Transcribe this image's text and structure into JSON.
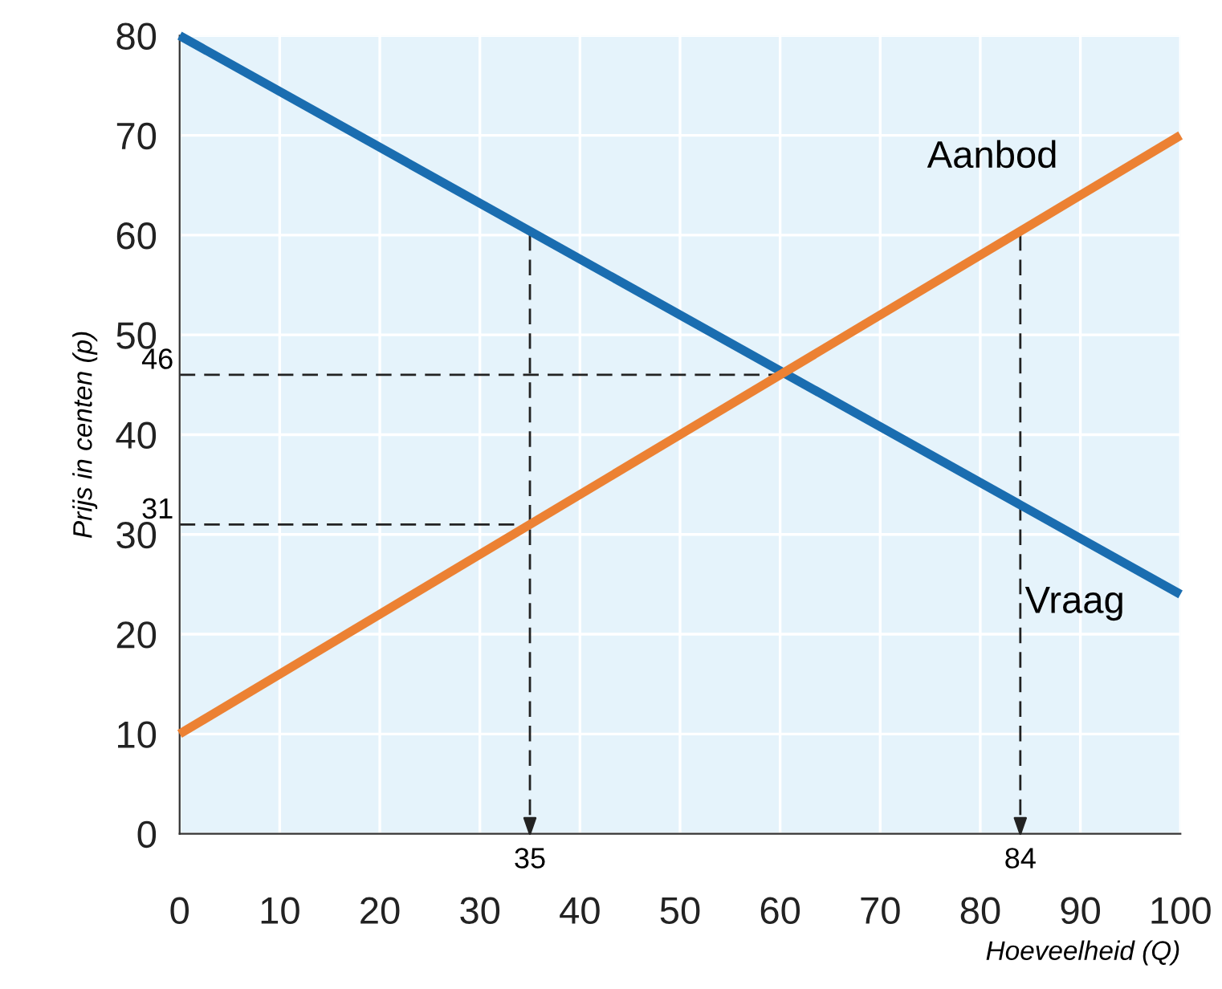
{
  "chart_data": {
    "type": "line",
    "xlabel": "Hoeveelheid (Q)",
    "ylabel": "Prijs in centen (p)",
    "x": [
      0,
      100
    ],
    "series": [
      {
        "name": "Vraag",
        "color": "#1a6db0",
        "values": [
          80,
          24
        ]
      },
      {
        "name": "Aanbod",
        "color": "#ec8133",
        "values": [
          10,
          70
        ]
      },
      {
        "color": "#222222",
        "x": [
          0,
          60
        ],
        "values": [
          46,
          46
        ],
        "line_style": "dashed"
      },
      {
        "color": "#222222",
        "x": [
          0,
          35
        ],
        "values": [
          31,
          31
        ],
        "line_style": "dashed"
      },
      {
        "color": "#222222",
        "x": [
          35,
          35
        ],
        "values": [
          60,
          0
        ],
        "line_style": "dashed"
      },
      {
        "color": "#222222",
        "x": [
          84,
          84
        ],
        "values": [
          60,
          0
        ],
        "line_style": "dashed"
      }
    ],
    "xlim": [
      0,
      100
    ],
    "ylim": [
      0,
      80
    ],
    "xticks": [
      0,
      10,
      20,
      30,
      40,
      50,
      60,
      70,
      80,
      90,
      100
    ],
    "yticks": [
      0,
      10,
      20,
      30,
      40,
      50,
      60,
      70,
      80
    ],
    "grid": true,
    "marker": "none",
    "line_style": "solid",
    "annotations": [
      {
        "text": "46",
        "x": 0,
        "y": 46
      },
      {
        "text": "31",
        "x": 0,
        "y": 31
      },
      {
        "text": "35",
        "x": 35,
        "y": 0
      },
      {
        "text": "84",
        "x": 84,
        "y": 0
      }
    ]
  }
}
